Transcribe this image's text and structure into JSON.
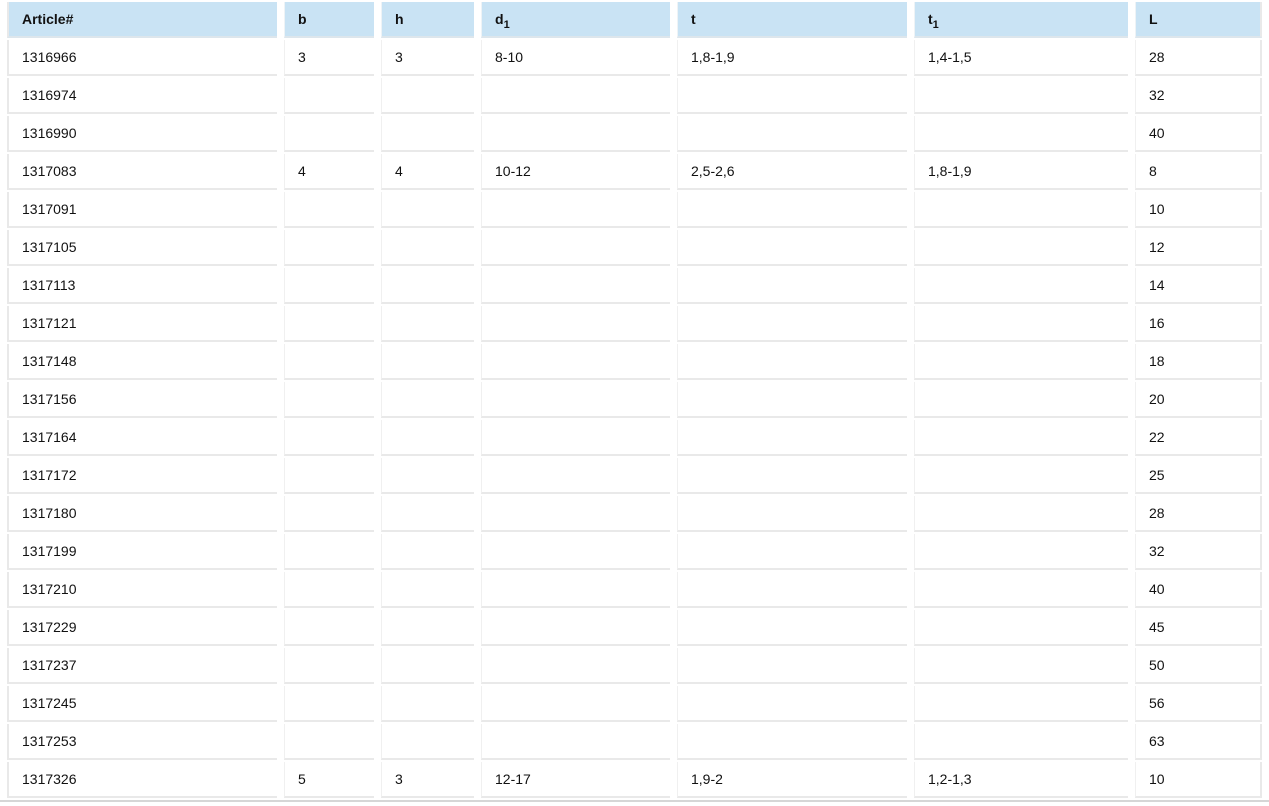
{
  "colors": {
    "header_bg": "#c9e3f4",
    "row_bg": "#ffffff",
    "grid_border": "#e9e9e9",
    "table_bottom_border": "#d6d6d6",
    "text": "#111111"
  },
  "chart_data": {
    "type": "table",
    "columns": [
      {
        "key": "article",
        "label": "Article#",
        "sub": ""
      },
      {
        "key": "b",
        "label": "b",
        "sub": ""
      },
      {
        "key": "h",
        "label": "h",
        "sub": ""
      },
      {
        "key": "d1",
        "label": "d",
        "sub": "1"
      },
      {
        "key": "t",
        "label": "t",
        "sub": ""
      },
      {
        "key": "t1",
        "label": "t",
        "sub": "1"
      },
      {
        "key": "l",
        "label": "L",
        "sub": ""
      }
    ],
    "rows": [
      [
        "1316966",
        "3",
        "3",
        "8-10",
        "1,8-1,9",
        "1,4-1,5",
        "28"
      ],
      [
        "1316974",
        "",
        "",
        "",
        "",
        "",
        "32"
      ],
      [
        "1316990",
        "",
        "",
        "",
        "",
        "",
        "40"
      ],
      [
        "1317083",
        "4",
        "4",
        "10-12",
        "2,5-2,6",
        "1,8-1,9",
        "8"
      ],
      [
        "1317091",
        "",
        "",
        "",
        "",
        "",
        "10"
      ],
      [
        "1317105",
        "",
        "",
        "",
        "",
        "",
        "12"
      ],
      [
        "1317113",
        "",
        "",
        "",
        "",
        "",
        "14"
      ],
      [
        "1317121",
        "",
        "",
        "",
        "",
        "",
        "16"
      ],
      [
        "1317148",
        "",
        "",
        "",
        "",
        "",
        "18"
      ],
      [
        "1317156",
        "",
        "",
        "",
        "",
        "",
        "20"
      ],
      [
        "1317164",
        "",
        "",
        "",
        "",
        "",
        "22"
      ],
      [
        "1317172",
        "",
        "",
        "",
        "",
        "",
        "25"
      ],
      [
        "1317180",
        "",
        "",
        "",
        "",
        "",
        "28"
      ],
      [
        "1317199",
        "",
        "",
        "",
        "",
        "",
        "32"
      ],
      [
        "1317210",
        "",
        "",
        "",
        "",
        "",
        "40"
      ],
      [
        "1317229",
        "",
        "",
        "",
        "",
        "",
        "45"
      ],
      [
        "1317237",
        "",
        "",
        "",
        "",
        "",
        "50"
      ],
      [
        "1317245",
        "",
        "",
        "",
        "",
        "",
        "56"
      ],
      [
        "1317253",
        "",
        "",
        "",
        "",
        "",
        "63"
      ],
      [
        "1317326",
        "5",
        "3",
        "12-17",
        "1,9-2",
        "1,2-1,3",
        "10"
      ]
    ]
  }
}
